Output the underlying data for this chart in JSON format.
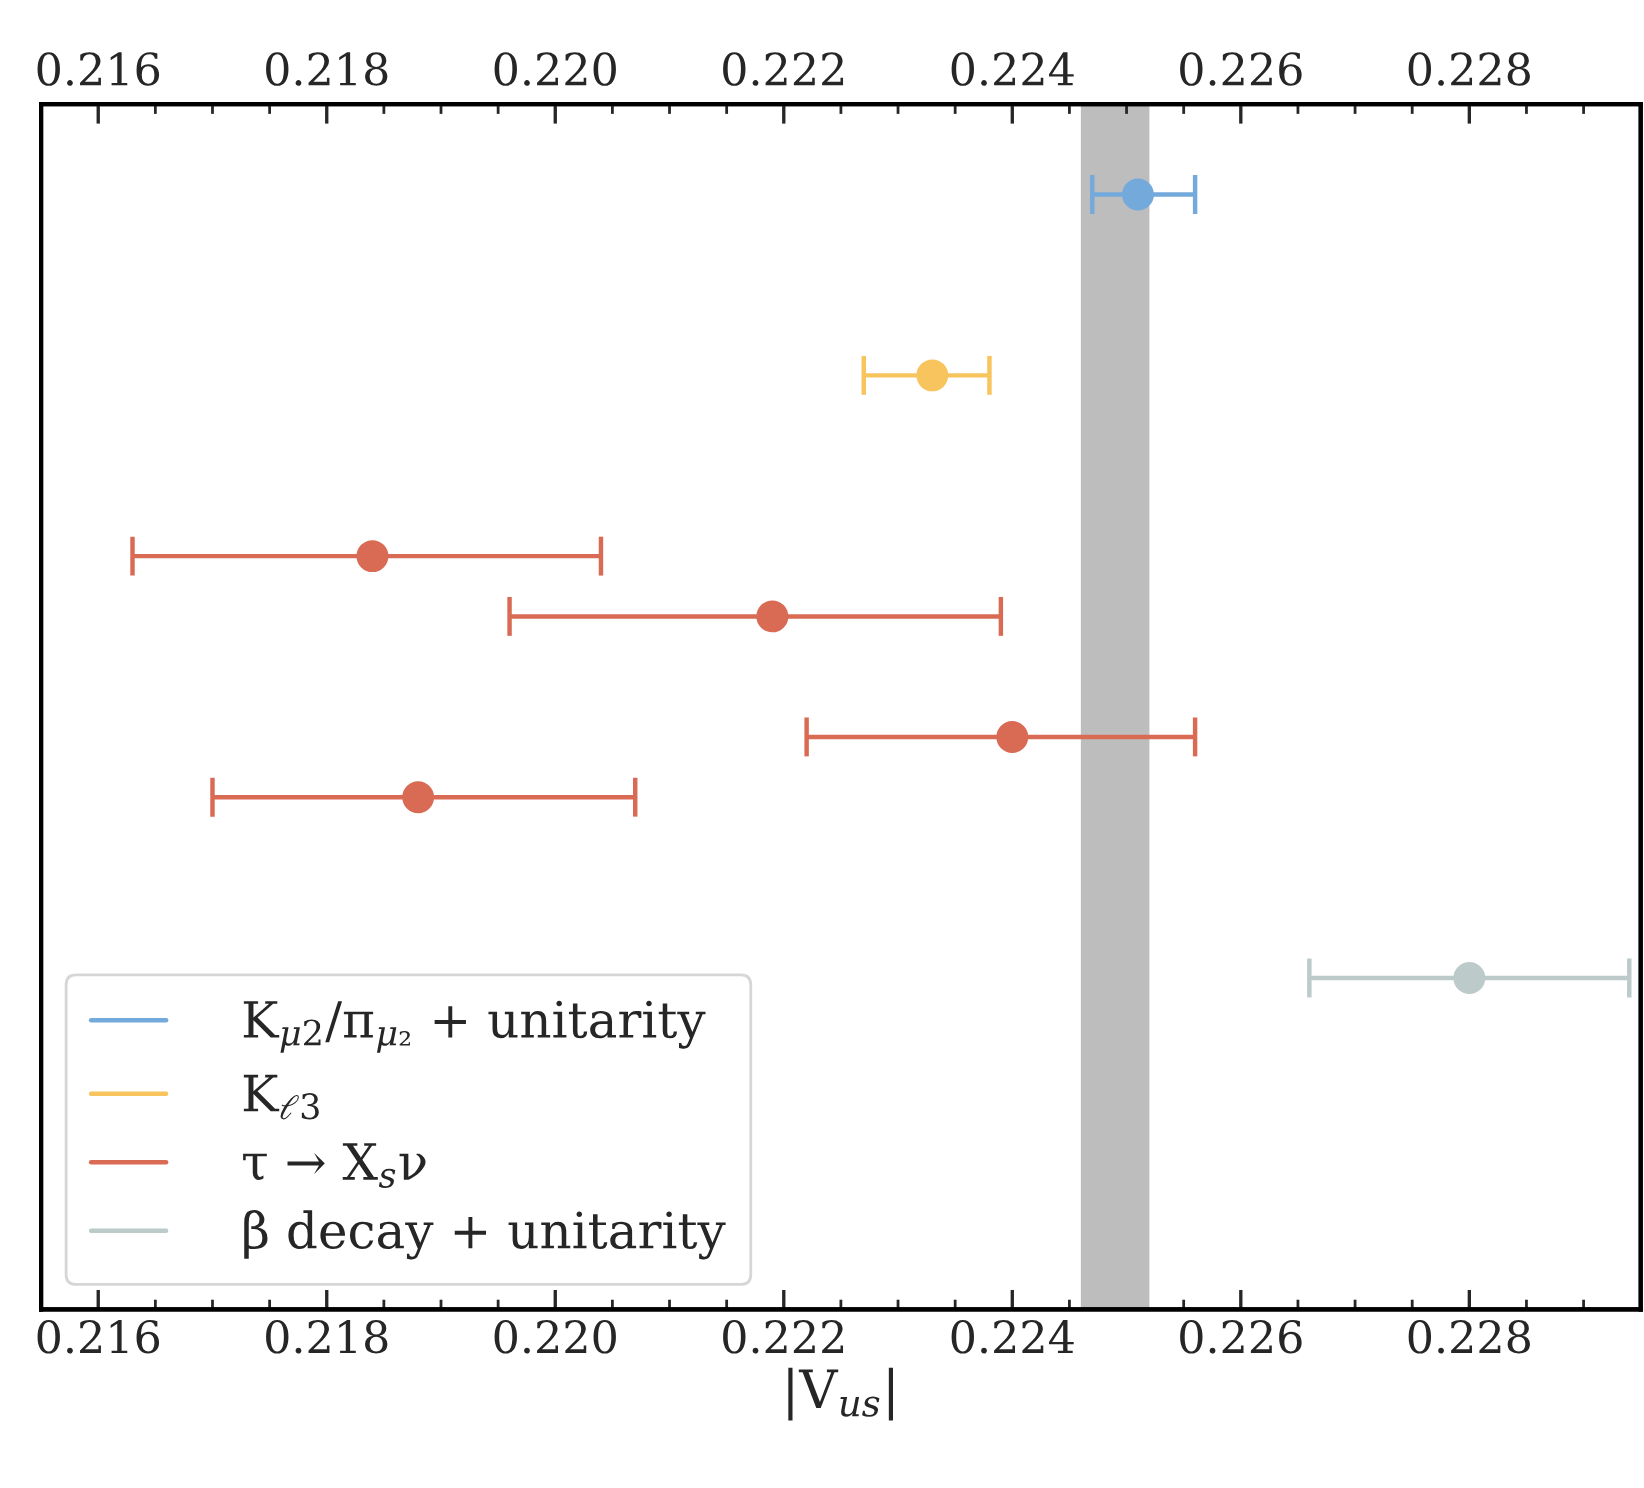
{
  "chart_data": {
    "type": "scatter",
    "orientation": "horizontal",
    "xlabel": "|V$_{us}$|",
    "categories": [
      null,
      null,
      null,
      null,
      null,
      null,
      null,
      null,
      null,
      null,
      null,
      null,
      null,
      null,
      null,
      null,
      null,
      null,
      null,
      null
    ],
    "series": [
      {
        "name": "K$_{μ2}$/π$_{μ₂}$ + unitarity",
        "color": "#74a9dc",
        "values": [
          null,
          0.2251,
          null,
          null,
          null,
          null,
          null,
          null,
          null,
          null,
          null,
          null,
          null,
          null,
          null,
          null,
          null,
          null,
          null,
          null
        ],
        "errors": [
          null,
          [
            0.2247,
            0.2256
          ],
          null,
          null,
          null,
          null,
          null,
          null,
          null,
          null,
          null,
          null,
          null,
          null,
          null,
          null,
          null,
          null,
          null,
          null
        ]
      },
      {
        "name": "K$_{ℓ3}$",
        "color": "#f8c45e",
        "values": [
          null,
          null,
          null,
          null,
          0.2233,
          null,
          null,
          null,
          null,
          null,
          null,
          null,
          null,
          null,
          null,
          null,
          null,
          null,
          null,
          null
        ],
        "errors": [
          null,
          null,
          null,
          null,
          [
            0.2227,
            0.2238
          ],
          null,
          null,
          null,
          null,
          null,
          null,
          null,
          null,
          null,
          null,
          null,
          null,
          null,
          null,
          null
        ]
      },
      {
        "name": "τ → X$_{s}$ν",
        "color": "#d96b55",
        "values": [
          null,
          null,
          null,
          null,
          null,
          null,
          null,
          0.2184,
          0.2219,
          null,
          0.224,
          0.2188,
          null,
          null,
          null,
          null,
          null,
          null,
          null,
          null
        ],
        "errors": [
          null,
          null,
          null,
          null,
          null,
          null,
          null,
          [
            0.2163,
            0.2204
          ],
          [
            0.2196,
            0.2239
          ],
          null,
          [
            0.2222,
            0.2256
          ],
          [
            0.217,
            0.2207
          ],
          null,
          null,
          null,
          null,
          null,
          null,
          null,
          null
        ]
      },
      {
        "name": "β decay + unitarity",
        "color": "#bccaca",
        "values": [
          null,
          null,
          null,
          null,
          null,
          null,
          null,
          null,
          null,
          null,
          null,
          null,
          null,
          null,
          0.228,
          null,
          null,
          null,
          null,
          null
        ],
        "errors": [
          null,
          null,
          null,
          null,
          null,
          null,
          null,
          null,
          null,
          null,
          null,
          null,
          null,
          null,
          0.0014,
          null,
          null,
          null,
          null,
          null
        ]
      }
    ],
    "bands": [
      {
        "axis": "x",
        "from": 0.2246,
        "to": 0.2252,
        "color": "#bdbdbd"
      }
    ],
    "xlim": [
      0.2155,
      0.2295
    ],
    "xticks": [
      {
        "value": 0.216,
        "label": "0.216"
      },
      {
        "value": 0.218,
        "label": "0.218"
      },
      {
        "value": 0.22,
        "label": "0.220"
      },
      {
        "value": 0.222,
        "label": "0.222"
      },
      {
        "value": 0.224,
        "label": "0.224"
      },
      {
        "value": 0.226,
        "label": "0.226"
      },
      {
        "value": 0.228,
        "label": "0.228"
      }
    ],
    "x2lim": [
      0.2155,
      0.2295
    ],
    "x2ticks": [
      {
        "value": 0.216,
        "label": "0.216"
      },
      {
        "value": 0.218,
        "label": "0.218"
      },
      {
        "value": 0.22,
        "label": "0.220"
      },
      {
        "value": 0.222,
        "label": "0.222"
      },
      {
        "value": 0.224,
        "label": "0.224"
      },
      {
        "value": 0.226,
        "label": "0.226"
      },
      {
        "value": 0.228,
        "label": "0.228"
      }
    ],
    "tick_labels": "x",
    "marker": "circle",
    "legend": "bottom left",
    "grid": false
  }
}
